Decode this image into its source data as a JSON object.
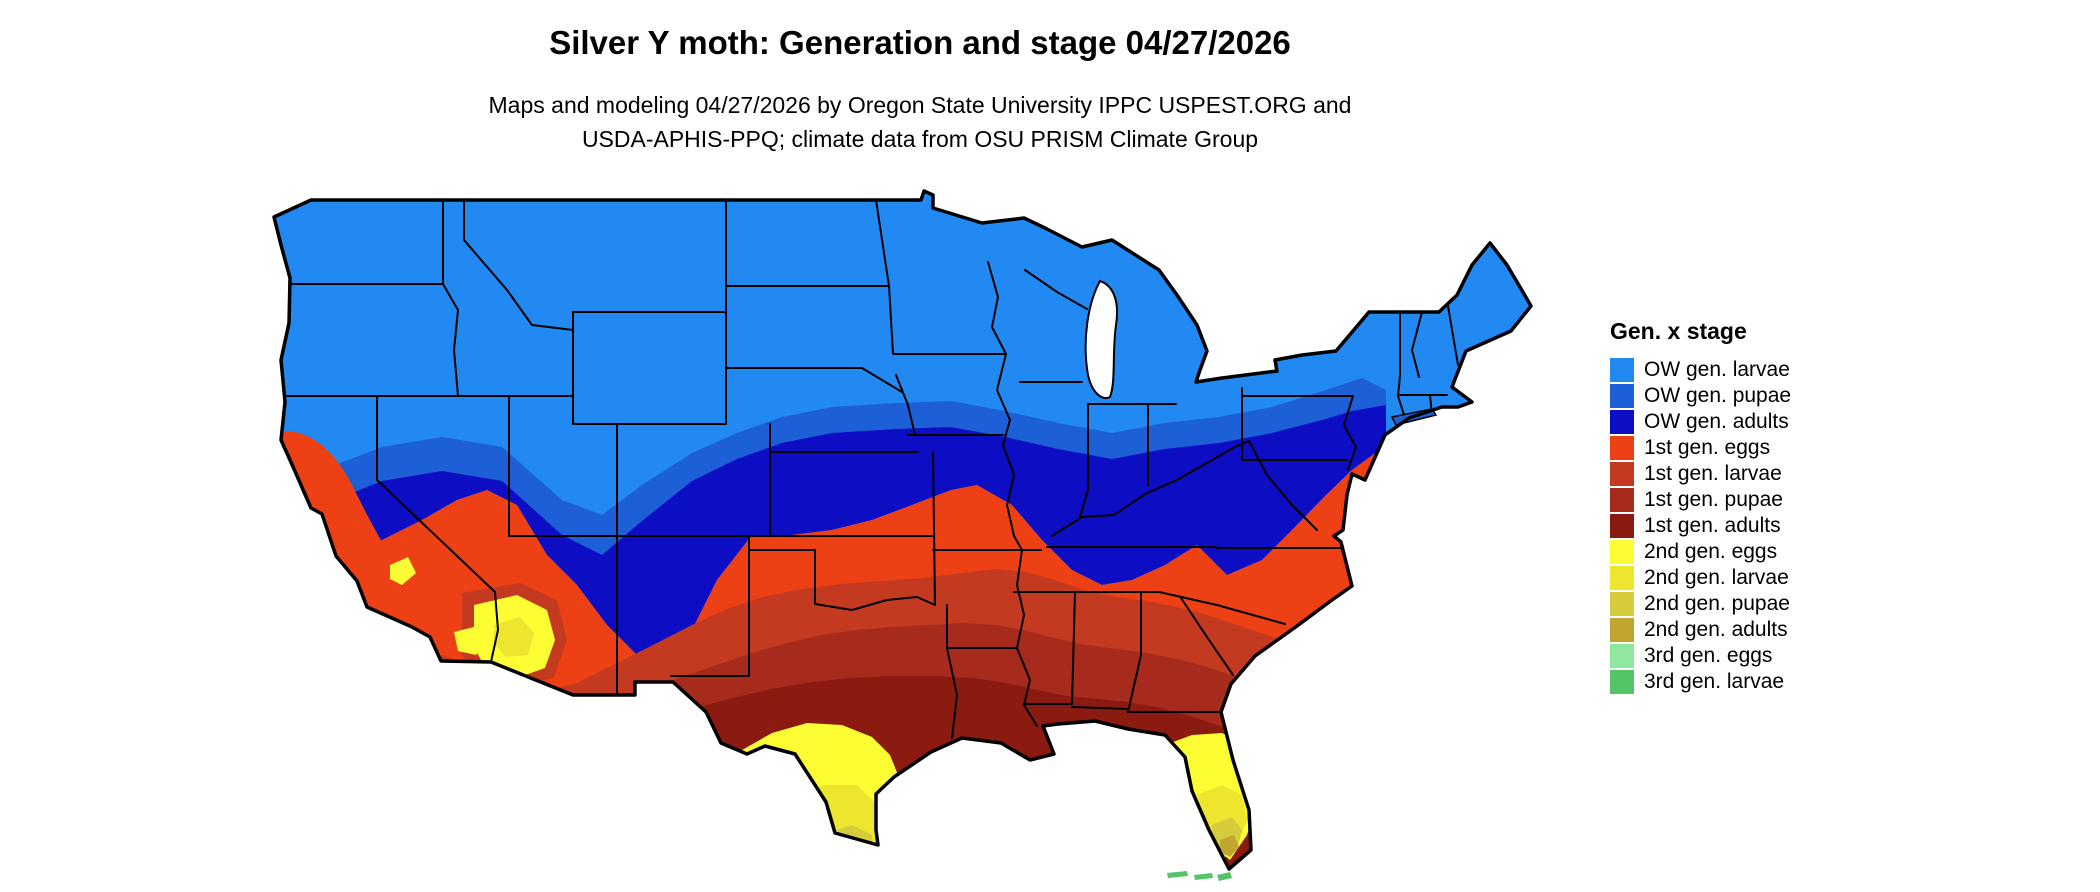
{
  "title": "Silver Y moth: Generation and stage 04/27/2026",
  "subtitle": {
    "line1": "Maps and modeling 04/27/2026 by Oregon State University IPPC USPEST.ORG and",
    "line2": "USDA-APHIS-PPQ; climate data from OSU PRISM Climate Group"
  },
  "legend": {
    "title": "Gen. x stage",
    "items": [
      {
        "label": "OW gen. larvae",
        "color": "#2288F2"
      },
      {
        "label": "OW gen. pupae",
        "color": "#1D5FD6"
      },
      {
        "label": "OW gen. adults",
        "color": "#0D0DC4"
      },
      {
        "label": "1st gen. eggs",
        "color": "#EE4015"
      },
      {
        "label": "1st gen. larvae",
        "color": "#C43A20"
      },
      {
        "label": "1st gen. pupae",
        "color": "#A62B1C"
      },
      {
        "label": "1st gen. adults",
        "color": "#8B1A10"
      },
      {
        "label": "2nd gen. eggs",
        "color": "#FDFD33"
      },
      {
        "label": "2nd gen. larvae",
        "color": "#EEE52F"
      },
      {
        "label": "2nd gen. pupae",
        "color": "#D6CB3B"
      },
      {
        "label": "2nd gen. adults",
        "color": "#C0A52F"
      },
      {
        "label": "3rd gen. eggs",
        "color": "#90E79E"
      },
      {
        "label": "3rd gen. larvae",
        "color": "#55C468"
      }
    ]
  }
}
